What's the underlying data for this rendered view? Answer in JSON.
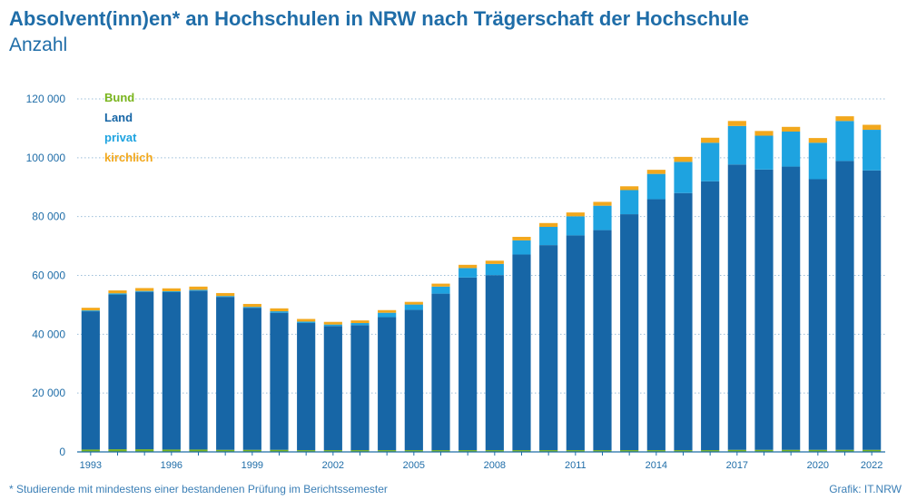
{
  "title": "Absolvent(inn)en* an Hochschulen in NRW nach Trägerschaft der Hochschule",
  "subtitle": "Anzahl",
  "footnote": "* Studierende mit mindestens einer bestandenen Prüfung im Berichtssemester",
  "source": "Grafik: IT.NRW",
  "chart_data": {
    "type": "bar",
    "stacked": true,
    "categories": [
      "1993",
      "1994",
      "1995",
      "1996",
      "1997",
      "1998",
      "1999",
      "2000",
      "2001",
      "2002",
      "2003",
      "2004",
      "2005",
      "2006",
      "2007",
      "2008",
      "2009",
      "2010",
      "2011",
      "2012",
      "2013",
      "2014",
      "2015",
      "2016",
      "2017",
      "2018",
      "2019",
      "2020",
      "2021",
      "2022"
    ],
    "x_tick_labels": [
      "1993",
      "1996",
      "1999",
      "2002",
      "2005",
      "2008",
      "2011",
      "2014",
      "2017",
      "2020",
      "2022"
    ],
    "ylim": [
      0,
      120000
    ],
    "yticks": [
      0,
      20000,
      40000,
      60000,
      80000,
      100000,
      120000
    ],
    "ytick_labels": [
      "0",
      "20 000",
      "40 000",
      "60 000",
      "80 000",
      "100 000",
      "120 000"
    ],
    "grid": true,
    "legend_position": "top-left",
    "series": [
      {
        "name": "Bund",
        "color": "#7ab51d",
        "values": [
          800,
          900,
          900,
          800,
          800,
          700,
          700,
          700,
          600,
          600,
          600,
          600,
          600,
          600,
          600,
          600,
          600,
          600,
          600,
          600,
          600,
          600,
          600,
          600,
          700,
          700,
          700,
          700,
          700,
          700
        ]
      },
      {
        "name": "Land",
        "color": "#1766a6",
        "values": [
          47000,
          52600,
          53500,
          53500,
          54000,
          52000,
          48300,
          46600,
          43200,
          42200,
          42500,
          45200,
          47700,
          53200,
          58700,
          59500,
          66500,
          69700,
          73000,
          74800,
          80200,
          85300,
          87400,
          91400,
          97000,
          95300,
          96300,
          92000,
          98200,
          95000
        ]
      },
      {
        "name": "privat",
        "color": "#1ea3e0",
        "values": [
          300,
          400,
          300,
          300,
          300,
          300,
          300,
          500,
          500,
          500,
          700,
          1500,
          1800,
          2400,
          3200,
          3800,
          4800,
          6200,
          6500,
          8300,
          8200,
          8600,
          10600,
          13100,
          13100,
          11500,
          11900,
          12400,
          13600,
          13800
        ]
      },
      {
        "name": "kirchlich",
        "color": "#f2a81d",
        "values": [
          900,
          1000,
          1000,
          1000,
          1100,
          1000,
          1000,
          1000,
          900,
          900,
          900,
          900,
          900,
          1000,
          1100,
          1100,
          1200,
          1300,
          1300,
          1300,
          1300,
          1400,
          1700,
          1700,
          1700,
          1600,
          1600,
          1600,
          1600,
          1700
        ]
      }
    ]
  }
}
